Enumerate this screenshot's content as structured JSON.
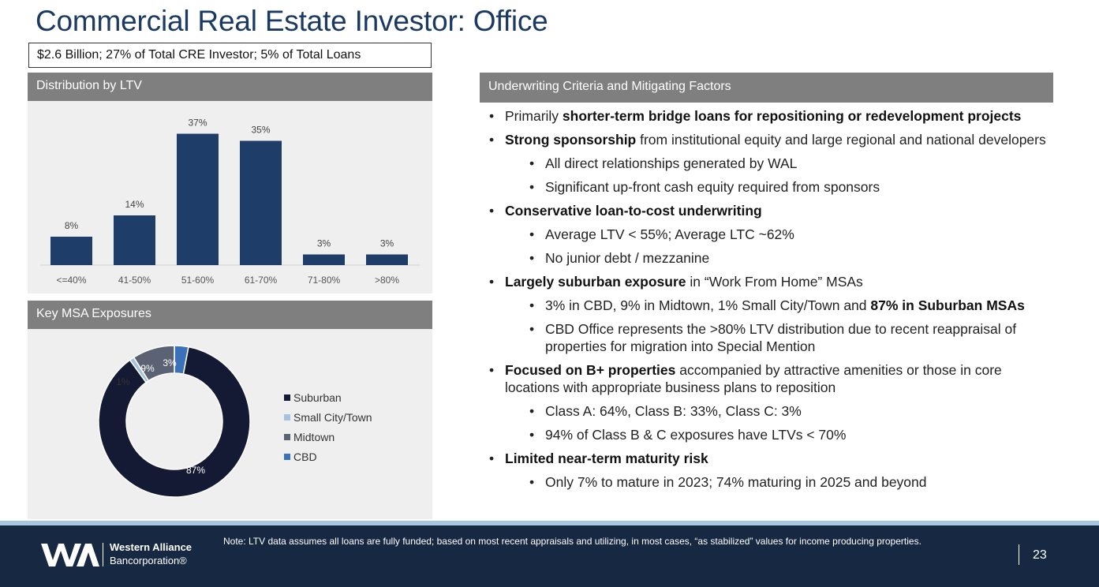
{
  "title": "Commercial Real Estate Investor: Office",
  "subtitle": "$2.6 Billion; 27% of Total CRE Investor; 5% of Total Loans",
  "ltv_panel": {
    "header": "Distribution by LTV"
  },
  "msa_panel": {
    "header": "Key MSA Exposures"
  },
  "uw_panel": {
    "header": "Underwriting Criteria and Mitigating Factors"
  },
  "colors": {
    "navy": "#1f3d69",
    "suburban": "#141a33",
    "small_city": "#a4c3de",
    "midtown": "#5b6273",
    "cbd": "#3b71b8",
    "header_gray": "#7f7f7f",
    "footer": "#162842"
  },
  "chart_data": [
    {
      "type": "bar",
      "categories": [
        "<=40%",
        "41-50%",
        "51-60%",
        "61-70%",
        "71-80%",
        ">80%"
      ],
      "values": [
        8,
        14,
        37,
        35,
        3,
        3
      ],
      "data_labels": [
        "8%",
        "14%",
        "37%",
        "35%",
        "3%",
        "3%"
      ],
      "ylim": [
        0,
        40
      ],
      "grid": false,
      "legend": "none"
    },
    {
      "type": "pie",
      "variant": "donut",
      "categories": [
        "Suburban",
        "Small City/Town",
        "Midtown",
        "CBD"
      ],
      "values": [
        87,
        1,
        9,
        3
      ],
      "data_labels": [
        "87%",
        "1%",
        "9%",
        "3%"
      ],
      "legend": "right"
    }
  ],
  "bullets": {
    "b1": {
      "pre": "Primarily ",
      "bold": "shorter-term bridge loans for repositioning or redevelopment projects"
    },
    "b2": {
      "bold": "Strong sponsorship",
      "post": " from institutional equity and large regional and national developers"
    },
    "b2a": "All direct relationships generated by WAL",
    "b2b": "Significant up-front cash equity required from sponsors",
    "b3": {
      "bold": "Conservative loan-to-cost underwriting"
    },
    "b3a": "Average LTV < 55%; Average LTC ~62%",
    "b3b": "No junior debt / mezzanine",
    "b4": {
      "bold": "Largely suburban exposure",
      "post": " in “Work From Home” MSAs"
    },
    "b4a": {
      "pre": "3% in CBD, 9% in Midtown, 1% Small City/Town and ",
      "bold": "87% in Suburban MSAs"
    },
    "b4b": "CBD Office represents the >80% LTV distribution due to recent reappraisal of properties for migration into Special Mention",
    "b5": {
      "bold": "Focused on B+ properties",
      "post": " accompanied by attractive amenities or those in core locations with appropriate business plans to reposition"
    },
    "b5a": "Class A: 64%, Class B: 33%, Class C: 3%",
    "b5b": "94% of Class B & C exposures have LTVs < 70%",
    "b6": {
      "bold": "Limited near-term maturity risk"
    },
    "b6a": "Only 7% to mature in 2023; 74% maturing in 2025 and beyond"
  },
  "footer": {
    "logo_line1": "Western Alliance",
    "logo_line2": "Bancorporation®",
    "note": "Note: LTV data assumes all loans are fully funded; based on most recent appraisals and utilizing, in most cases, “as stabilized” values for income producing properties.",
    "page_number": "23"
  }
}
